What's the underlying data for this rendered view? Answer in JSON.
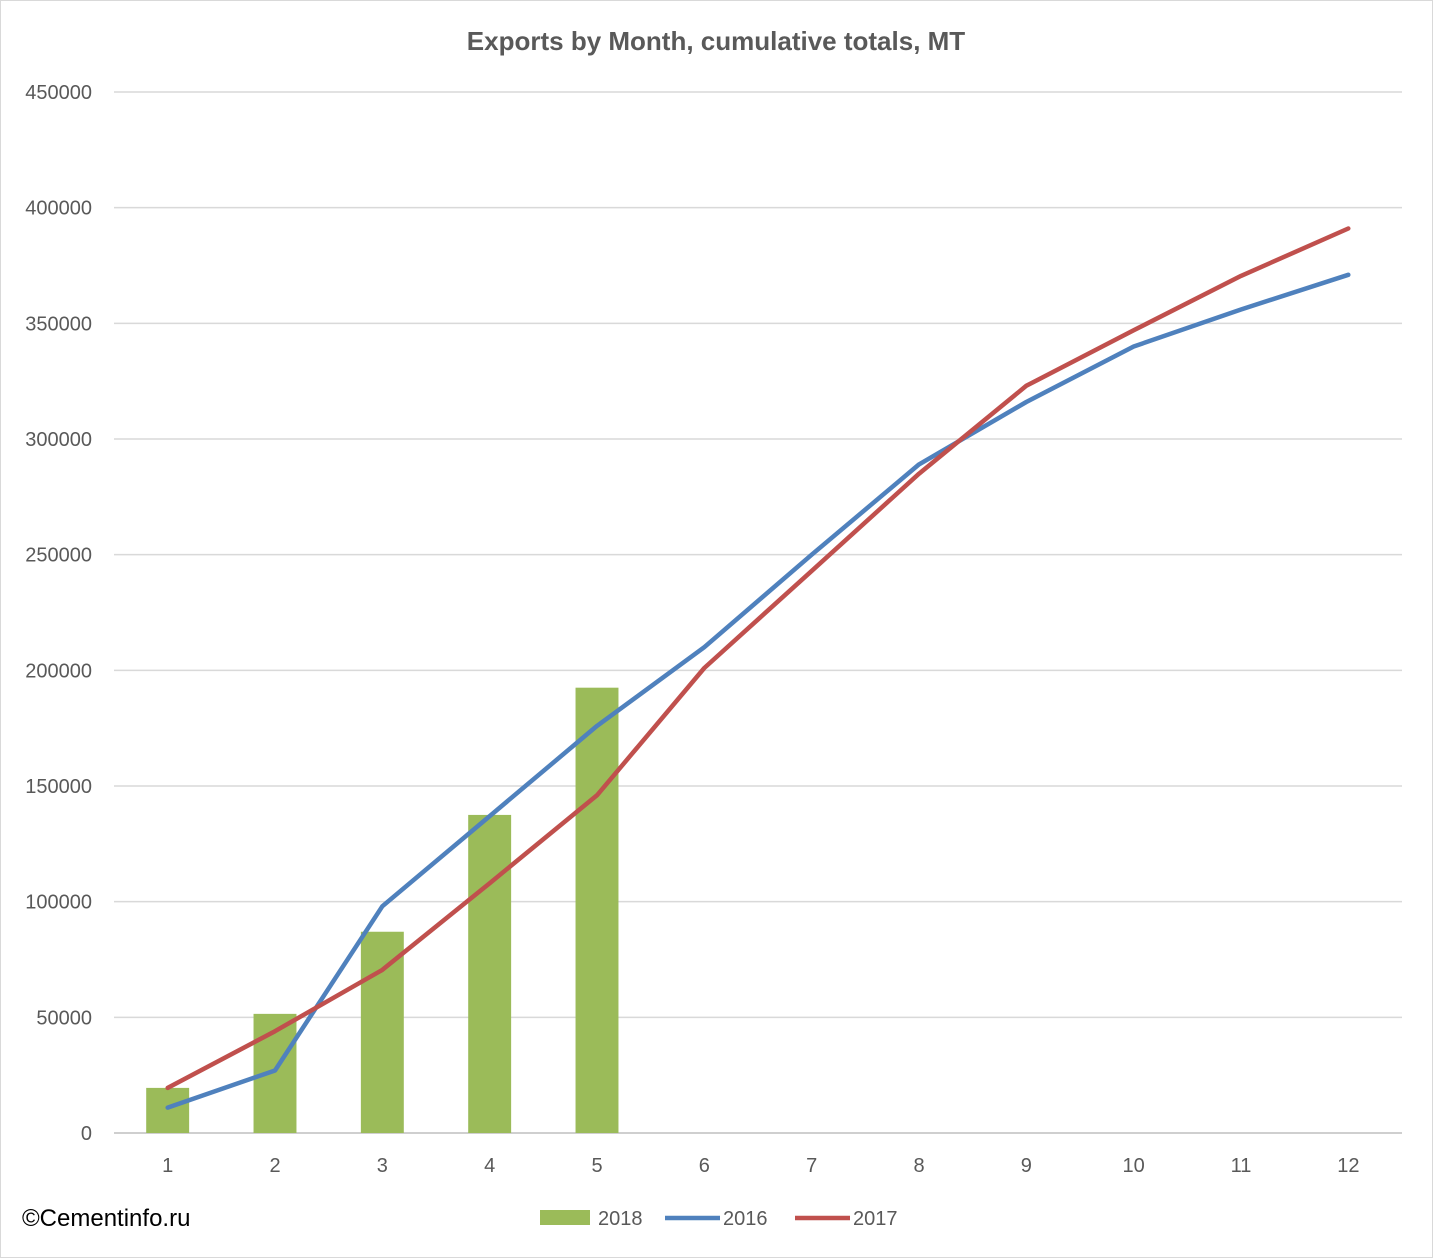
{
  "chart_data": {
    "type": "bar",
    "title": "Exports by Month, cumulative totals, MT",
    "xlabel": "",
    "ylabel": "",
    "categories": [
      "1",
      "2",
      "3",
      "4",
      "5",
      "6",
      "7",
      "8",
      "9",
      "10",
      "11",
      "12"
    ],
    "yticks": [
      "0",
      "50000",
      "100000",
      "150000",
      "200000",
      "250000",
      "300000",
      "350000",
      "400000",
      "450000"
    ],
    "ylim": [
      0,
      450000
    ],
    "grid": true,
    "legend_position": "bottom",
    "series": [
      {
        "name": "2018",
        "type": "bar",
        "color": "#9bbb59",
        "values": [
          19500,
          51500,
          87000,
          137500,
          192500,
          null,
          null,
          null,
          null,
          null,
          null,
          null
        ]
      },
      {
        "name": "2016",
        "type": "line",
        "color": "#4f81bd",
        "values": [
          11000,
          27000,
          98000,
          137000,
          176000,
          210000,
          250000,
          289000,
          316000,
          340000,
          356000,
          371000
        ]
      },
      {
        "name": "2017",
        "type": "line",
        "color": "#c0504d",
        "values": [
          19500,
          44000,
          70500,
          108000,
          146000,
          201000,
          243000,
          285000,
          323000,
          347000,
          370500,
          391000
        ]
      }
    ]
  },
  "footer": {
    "credit": "©Cementinfo.ru"
  }
}
